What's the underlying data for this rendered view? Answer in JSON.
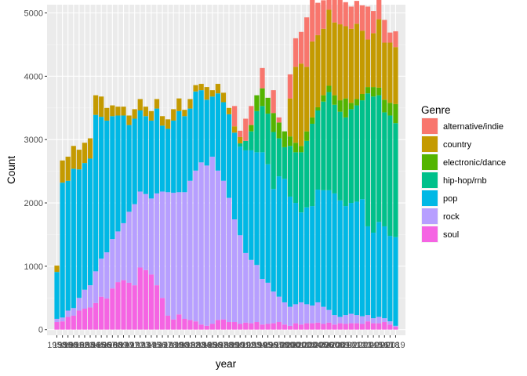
{
  "chart_data": {
    "type": "bar",
    "stacked": true,
    "title": "",
    "xlabel": "year",
    "ylabel": "Count",
    "ylim": [
      -90,
      5130
    ],
    "y_ticks": [
      0,
      1000,
      2000,
      3000,
      4000,
      5000
    ],
    "grid": true,
    "legend_position": "right",
    "legend_title": "Genre",
    "categories": [
      "1958",
      "1959",
      "1960",
      "1961",
      "1962",
      "1963",
      "1964",
      "1965",
      "1966",
      "1967",
      "1968",
      "1969",
      "1970",
      "1971",
      "1972",
      "1973",
      "1974",
      "1975",
      "1976",
      "1977",
      "1978",
      "1979",
      "1980",
      "1981",
      "1982",
      "1983",
      "1984",
      "1985",
      "1986",
      "1987",
      "1988",
      "1989",
      "1990",
      "1991",
      "1992",
      "1993",
      "1994",
      "1995",
      "1996",
      "1997",
      "1998",
      "1999",
      "2000",
      "2001",
      "2002",
      "2003",
      "2004",
      "2005",
      "2006",
      "2007",
      "2008",
      "2009",
      "2010",
      "2011",
      "2012",
      "2013",
      "2014",
      "2015",
      "2016",
      "2017",
      "2018",
      "2019"
    ],
    "series": [
      {
        "name": "soul",
        "color": "#F564E3",
        "values": [
          120,
          130,
          200,
          220,
          300,
          330,
          350,
          420,
          520,
          490,
          650,
          750,
          780,
          740,
          700,
          980,
          940,
          870,
          700,
          500,
          220,
          160,
          240,
          170,
          150,
          130,
          80,
          60,
          90,
          150,
          160,
          120,
          120,
          90,
          110,
          100,
          120,
          80,
          90,
          100,
          120,
          80,
          60,
          100,
          80,
          100,
          100,
          110,
          90,
          110,
          80,
          100,
          90,
          100,
          100,
          90,
          130,
          100,
          100,
          120,
          80,
          40
        ]
      },
      {
        "name": "rock",
        "color": "#B79FFF",
        "values": [
          50,
          60,
          100,
          120,
          200,
          300,
          350,
          500,
          600,
          730,
          780,
          800,
          900,
          1120,
          1280,
          1200,
          1200,
          1200,
          1450,
          1680,
          1950,
          2000,
          1930,
          2000,
          2200,
          2380,
          2560,
          2530,
          2640,
          2360,
          2190,
          1960,
          1620,
          1400,
          1100,
          1000,
          900,
          720,
          650,
          500,
          400,
          350,
          300,
          300,
          350,
          300,
          280,
          320,
          270,
          200,
          150,
          100,
          140,
          150,
          130,
          120,
          100,
          80,
          100,
          60,
          50,
          20
        ]
      },
      {
        "name": "pop",
        "color": "#00B8E5",
        "values": [
          740,
          2130,
          2050,
          2200,
          2030,
          2000,
          2000,
          2470,
          2240,
          2080,
          1940,
          1830,
          1700,
          1370,
          1350,
          1280,
          1230,
          1230,
          1340,
          1040,
          1000,
          1140,
          1280,
          1200,
          1140,
          1250,
          1140,
          1040,
          950,
          1220,
          1240,
          1320,
          1370,
          1400,
          1620,
          1730,
          1780,
          2000,
          1870,
          1620,
          1900,
          1950,
          1740,
          1600,
          1420,
          1530,
          1570,
          1780,
          1840,
          1890,
          1920,
          1840,
          1720,
          1750,
          1790,
          1850,
          1400,
          1350,
          1500,
          1450,
          1350,
          1400
        ]
      },
      {
        "name": "hip-hop/rnb",
        "color": "#00C08B",
        "values": [
          0,
          0,
          0,
          0,
          0,
          0,
          0,
          0,
          0,
          0,
          0,
          0,
          0,
          0,
          0,
          0,
          0,
          0,
          0,
          0,
          0,
          0,
          0,
          0,
          0,
          0,
          0,
          0,
          0,
          0,
          0,
          0,
          0,
          50,
          150,
          300,
          650,
          730,
          800,
          900,
          600,
          500,
          800,
          800,
          950,
          1050,
          1300,
          1250,
          1400,
          1550,
          1400,
          1400,
          1400,
          1480,
          1520,
          1560,
          2100,
          2150,
          2000,
          1800,
          1900,
          1800
        ]
      },
      {
        "name": "electronic/dance",
        "color": "#53B400",
        "values": [
          0,
          0,
          0,
          0,
          0,
          0,
          0,
          0,
          0,
          0,
          0,
          0,
          0,
          0,
          0,
          0,
          0,
          0,
          0,
          0,
          0,
          0,
          0,
          0,
          0,
          0,
          0,
          0,
          0,
          0,
          0,
          0,
          0,
          0,
          0,
          100,
          250,
          280,
          250,
          300,
          250,
          250,
          150,
          150,
          100,
          150,
          100,
          50,
          100,
          100,
          150,
          180,
          300,
          100,
          100,
          100,
          100,
          150,
          120,
          200,
          200,
          300
        ]
      },
      {
        "name": "country",
        "color": "#C49A00",
        "values": [
          100,
          350,
          380,
          360,
          310,
          320,
          320,
          310,
          320,
          200,
          170,
          140,
          140,
          150,
          150,
          180,
          150,
          150,
          150,
          150,
          150,
          180,
          200,
          100,
          150,
          100,
          100,
          200,
          100,
          150,
          150,
          100,
          100,
          100,
          0,
          0,
          0,
          0,
          0,
          0,
          0,
          0,
          600,
          1200,
          1300,
          1020,
          1200,
          1140,
          1050,
          1200,
          1150,
          1200,
          1140,
          1170,
          1190,
          1000,
          750,
          850,
          1080,
          900,
          950,
          900
        ]
      },
      {
        "name": "alternative/indie",
        "color": "#F8766D",
        "values": [
          0,
          0,
          0,
          0,
          0,
          0,
          0,
          0,
          0,
          0,
          0,
          0,
          0,
          0,
          0,
          0,
          0,
          0,
          0,
          0,
          0,
          0,
          0,
          0,
          0,
          0,
          0,
          0,
          0,
          0,
          0,
          0,
          320,
          100,
          350,
          300,
          0,
          320,
          0,
          360,
          80,
          0,
          380,
          450,
          500,
          780,
          780,
          510,
          450,
          500,
          480,
          520,
          380,
          350,
          360,
          400,
          520,
          350,
          350,
          360,
          160,
          250
        ]
      }
    ]
  }
}
